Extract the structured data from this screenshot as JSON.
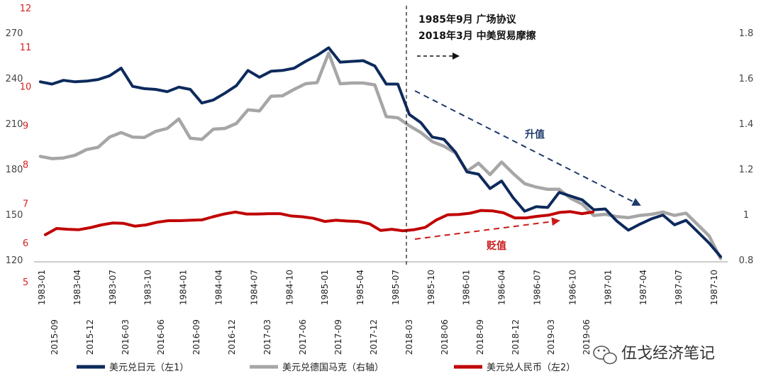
{
  "chart_data": {
    "type": "line",
    "title": "",
    "axes": {
      "left1": {
        "label": "美元兑日元（左1）",
        "range": [
          120,
          270
        ],
        "ticks": [
          120,
          150,
          180,
          210,
          240,
          270
        ]
      },
      "left2": {
        "label": "美元兑人民币（左2）",
        "range": [
          5,
          12
        ],
        "ticks": [
          5,
          6,
          7,
          8,
          9,
          10,
          11,
          12
        ]
      },
      "right": {
        "label": "美元兑德国马克（右轴）",
        "range": [
          0.8,
          1.8
        ],
        "ticks": [
          0.8,
          1.0,
          1.2,
          1.4,
          1.6,
          1.8
        ]
      }
    },
    "x_lower_1985": [
      "1983-01",
      "1983-04",
      "1983-07",
      "1983-10",
      "1984-01",
      "1984-04",
      "1984-07",
      "1984-10",
      "1985-01",
      "1985-04",
      "1985-07",
      "1985-10",
      "1986-01",
      "1986-04",
      "1986-07",
      "1986-10",
      "1987-01",
      "1987-04",
      "1987-07",
      "1987-10"
    ],
    "x_upper_2018": [
      "2015-09",
      "2015-12",
      "2016-03",
      "2016-06",
      "2016-09",
      "2016-12",
      "2017-03",
      "2017-06",
      "2017-09",
      "2017-12",
      "2018-03",
      "2018-06",
      "2018-09",
      "2018-12",
      "2019-03",
      "2019-06"
    ],
    "series": [
      {
        "name": "美元兑日元（左1）",
        "axis": "left1",
        "color": "#0d2a5c",
        "values": [
          237.5,
          236.0,
          238.5,
          237.5,
          238.0,
          239.0,
          241.5,
          246.5,
          234.5,
          233.0,
          232.5,
          231.0,
          234.0,
          232.5,
          223.5,
          225.5,
          230.0,
          235.0,
          245.0,
          240.5,
          244.5,
          245.0,
          246.5,
          251.0,
          255.0,
          260.0,
          250.5,
          251.0,
          251.5,
          248.0,
          236.0,
          236.0,
          216.0,
          210.5,
          201.0,
          199.5,
          191.0,
          178.0,
          176.5,
          167.0,
          172.0,
          161.0,
          152.0,
          155.0,
          154.5,
          164.5,
          162.0,
          159.5,
          153.0,
          153.5,
          145.5,
          139.5,
          143.5,
          147.0,
          149.5,
          143.0,
          146.0,
          138.5,
          131.0,
          122.0
        ]
      },
      {
        "name": "美元兑德国马克（右轴）",
        "axis": "right",
        "color": "#a6a6a6",
        "values": [
          1.255,
          1.245,
          1.248,
          1.26,
          1.285,
          1.295,
          1.34,
          1.36,
          1.34,
          1.338,
          1.365,
          1.378,
          1.42,
          1.335,
          1.33,
          1.375,
          1.378,
          1.4,
          1.46,
          1.455,
          1.52,
          1.522,
          1.55,
          1.575,
          1.58,
          1.71,
          1.575,
          1.578,
          1.578,
          1.57,
          1.43,
          1.425,
          1.39,
          1.36,
          1.32,
          1.3,
          1.27,
          1.19,
          1.225,
          1.175,
          1.23,
          1.18,
          1.135,
          1.12,
          1.11,
          1.11,
          1.07,
          1.045,
          0.995,
          1.0,
          0.99,
          0.985,
          0.995,
          1.0,
          1.01,
          0.995,
          1.005,
          0.955,
          0.905,
          0.805
        ]
      },
      {
        "name": "美元兑人民币（左2）",
        "axis": "left2",
        "color": "#c00000",
        "values": [
          6.2,
          6.36,
          6.34,
          6.33,
          6.38,
          6.45,
          6.5,
          6.49,
          6.42,
          6.45,
          6.52,
          6.56,
          6.56,
          6.57,
          6.58,
          6.66,
          6.73,
          6.78,
          6.73,
          6.73,
          6.74,
          6.74,
          6.68,
          6.66,
          6.62,
          6.54,
          6.57,
          6.55,
          6.54,
          6.48,
          6.31,
          6.34,
          6.3,
          6.33,
          6.39,
          6.58,
          6.71,
          6.72,
          6.75,
          6.82,
          6.81,
          6.76,
          6.63,
          6.63,
          6.67,
          6.7,
          6.77,
          6.79,
          6.74,
          6.78
        ]
      }
    ],
    "annotations": {
      "event_1": "1985年9月  广场协议",
      "event_2": "2018年3月  中美贸易摩擦",
      "appreciation": "升值",
      "depreciation": "贬值"
    },
    "legend_position": "bottom",
    "watermark": "伍戈经济笔记"
  }
}
